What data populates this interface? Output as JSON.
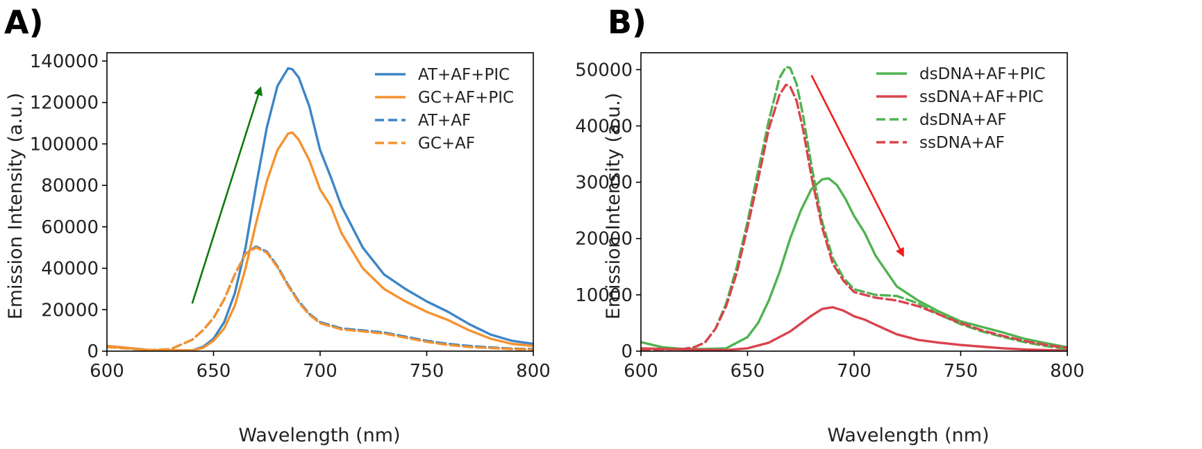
{
  "chart_data": [
    {
      "panel_label": "A)",
      "type": "line",
      "xlabel": "Wavelength (nm)",
      "ylabel": "Emission Intensity (a.u.)",
      "xlim": [
        600,
        800
      ],
      "ylim": [
        0,
        144000
      ],
      "xticks": [
        600,
        650,
        700,
        750,
        800
      ],
      "yticks": [
        0,
        20000,
        40000,
        60000,
        80000,
        100000,
        120000,
        140000
      ],
      "legend_position": "top-right",
      "arrow": {
        "color": "#0b7a0b",
        "from": [
          640,
          23000
        ],
        "to": [
          672,
          127000
        ],
        "direction": "up"
      },
      "series": [
        {
          "name": "AT+AF+PIC",
          "color": "#3d85c6",
          "style": "solid",
          "x": [
            600,
            620,
            640,
            645,
            650,
            655,
            660,
            665,
            670,
            675,
            680,
            685,
            687,
            690,
            695,
            700,
            705,
            710,
            720,
            730,
            740,
            750,
            760,
            770,
            780,
            790,
            800
          ],
          "y": [
            2500,
            500,
            400,
            2000,
            6000,
            14000,
            28000,
            50000,
            80000,
            108000,
            128000,
            136500,
            136000,
            132000,
            118000,
            97000,
            84000,
            70000,
            50000,
            37000,
            30000,
            24000,
            19000,
            13000,
            8000,
            5000,
            3500
          ]
        },
        {
          "name": "GC+AF+PIC",
          "color": "#f5922f",
          "style": "solid",
          "x": [
            600,
            620,
            640,
            645,
            650,
            655,
            660,
            665,
            670,
            675,
            680,
            685,
            687,
            690,
            695,
            700,
            705,
            710,
            720,
            730,
            740,
            750,
            760,
            770,
            780,
            790,
            800
          ],
          "y": [
            2500,
            500,
            400,
            1500,
            5000,
            11000,
            22000,
            40000,
            62000,
            82000,
            97000,
            105000,
            105500,
            102000,
            92000,
            78000,
            70000,
            57000,
            40000,
            30000,
            24000,
            19000,
            15000,
            10000,
            6000,
            3500,
            2500
          ]
        },
        {
          "name": "AT+AF",
          "color": "#3d85c6",
          "style": "dashed",
          "x": [
            600,
            620,
            630,
            640,
            645,
            650,
            655,
            660,
            665,
            670,
            675,
            680,
            685,
            690,
            695,
            700,
            710,
            720,
            730,
            740,
            750,
            760,
            770,
            780,
            790,
            800
          ],
          "y": [
            2000,
            500,
            1000,
            5500,
            10000,
            16000,
            25000,
            37000,
            47000,
            50500,
            48000,
            41000,
            32000,
            24000,
            18000,
            14000,
            11000,
            10000,
            9000,
            7000,
            5000,
            3500,
            2500,
            1800,
            1200,
            1000
          ]
        },
        {
          "name": "GC+AF",
          "color": "#f5922f",
          "style": "dashed",
          "x": [
            600,
            620,
            630,
            640,
            645,
            650,
            655,
            660,
            665,
            670,
            675,
            680,
            685,
            690,
            695,
            700,
            710,
            720,
            730,
            740,
            750,
            760,
            770,
            780,
            790,
            800
          ],
          "y": [
            2000,
            500,
            1000,
            5500,
            10000,
            16000,
            25000,
            37000,
            47000,
            50000,
            47500,
            40500,
            31500,
            23500,
            17500,
            13500,
            10500,
            9500,
            8500,
            6500,
            4500,
            3000,
            2000,
            1500,
            1000,
            800
          ]
        }
      ]
    },
    {
      "panel_label": "B)",
      "type": "line",
      "xlabel": "Wavelength (nm)",
      "ylabel": "Emission Intensity (a.u.)",
      "xlim": [
        600,
        800
      ],
      "ylim": [
        0,
        53000
      ],
      "xticks": [
        600,
        650,
        700,
        750,
        800
      ],
      "yticks": [
        0,
        10000,
        20000,
        30000,
        40000,
        50000
      ],
      "legend_position": "top-right",
      "arrow": {
        "color": "#f21b1b",
        "from": [
          680,
          49000
        ],
        "to": [
          723,
          17000
        ],
        "direction": "down"
      },
      "series": [
        {
          "name": "dsDNA+AF+PIC",
          "color": "#4fb34f",
          "style": "solid",
          "x": [
            600,
            610,
            620,
            630,
            640,
            650,
            655,
            660,
            665,
            670,
            675,
            680,
            685,
            688,
            692,
            696,
            700,
            705,
            710,
            720,
            730,
            740,
            750,
            760,
            770,
            780,
            790,
            800
          ],
          "y": [
            1600,
            700,
            400,
            400,
            500,
            2500,
            5000,
            9000,
            14000,
            20000,
            25000,
            28800,
            30500,
            30700,
            29500,
            27000,
            24000,
            21000,
            17000,
            11500,
            9000,
            7000,
            5300,
            4300,
            3300,
            2200,
            1400,
            700
          ]
        },
        {
          "name": "ssDNA+AF+PIC",
          "color": "#d9434d",
          "style": "solid",
          "x": [
            600,
            620,
            640,
            650,
            660,
            670,
            680,
            685,
            690,
            695,
            700,
            705,
            710,
            720,
            730,
            740,
            750,
            760,
            770,
            780,
            790,
            800
          ],
          "y": [
            500,
            300,
            200,
            500,
            1500,
            3500,
            6300,
            7500,
            7800,
            7200,
            6200,
            5600,
            4700,
            3000,
            2000,
            1500,
            1100,
            800,
            500,
            300,
            200,
            100
          ]
        },
        {
          "name": "dsDNA+AF",
          "color": "#4fb34f",
          "style": "dashed",
          "x": [
            600,
            610,
            620,
            625,
            630,
            635,
            640,
            645,
            650,
            655,
            660,
            665,
            668,
            670,
            673,
            676,
            680,
            685,
            690,
            695,
            700,
            705,
            710,
            720,
            730,
            740,
            750,
            760,
            770,
            780,
            790,
            800
          ],
          "y": [
            300,
            300,
            400,
            700,
            1500,
            4000,
            8500,
            15000,
            23000,
            32000,
            41000,
            48500,
            50500,
            50300,
            47500,
            42000,
            33000,
            23000,
            16500,
            13000,
            11000,
            10500,
            10000,
            9800,
            8500,
            6500,
            4800,
            3500,
            2500,
            1600,
            900,
            400
          ]
        },
        {
          "name": "ssDNA+AF",
          "color": "#d9434d",
          "style": "dashed",
          "x": [
            600,
            610,
            620,
            625,
            630,
            635,
            640,
            645,
            650,
            655,
            660,
            665,
            668,
            670,
            673,
            676,
            680,
            685,
            690,
            695,
            700,
            705,
            710,
            720,
            730,
            740,
            750,
            760,
            770,
            780,
            790,
            800
          ],
          "y": [
            300,
            300,
            400,
            700,
            1500,
            4000,
            8000,
            14000,
            22000,
            30500,
            39500,
            45500,
            47300,
            47000,
            44500,
            39500,
            31000,
            22000,
            15500,
            12500,
            10500,
            10000,
            9500,
            9000,
            8000,
            6500,
            5000,
            3700,
            2700,
            1800,
            1100,
            600
          ]
        }
      ]
    }
  ]
}
